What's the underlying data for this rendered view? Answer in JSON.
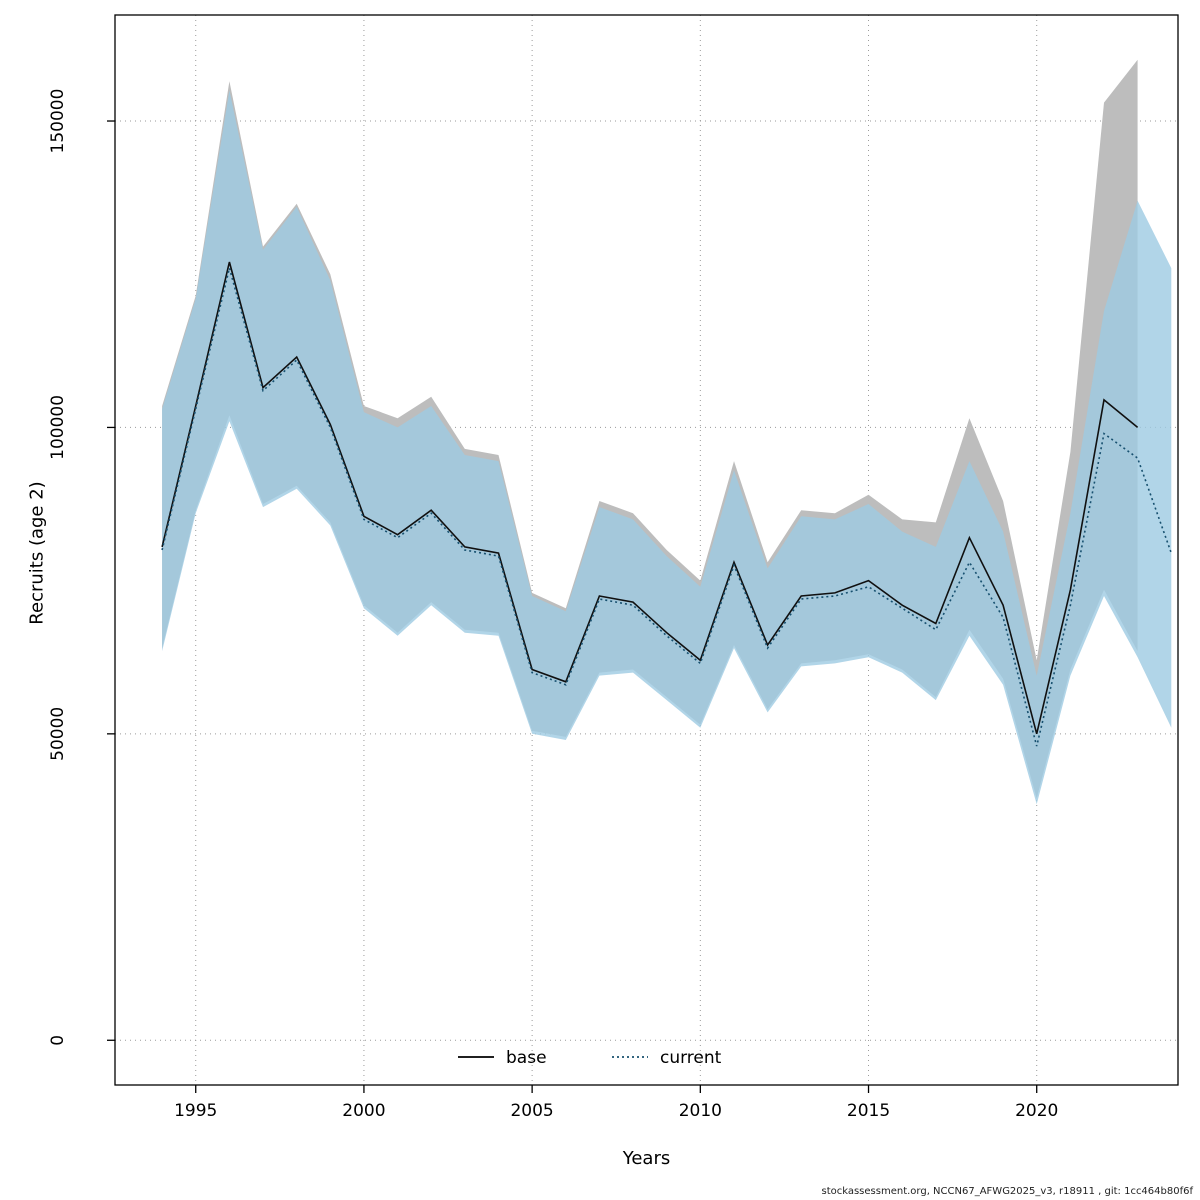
{
  "page": {
    "background": "#ffffff"
  },
  "footer": {
    "text": "stockassessment.org, NCCN67_AFWG2025_v3, r18911 , git: 1cc464b80f6f"
  },
  "chart_data": {
    "type": "line",
    "title": "",
    "xlabel": "Years",
    "ylabel": "Recruits (age 2)",
    "x_ticks": [
      1995,
      2000,
      2005,
      2010,
      2015,
      2020
    ],
    "y_ticks": [
      0,
      50000,
      100000,
      150000
    ],
    "xlim": [
      1992.6,
      2024.2
    ],
    "ylim": [
      -7300,
      167300
    ],
    "grid": true,
    "legend": {
      "position": "bottom-center",
      "entries": [
        {
          "label": "base",
          "line": "solid",
          "color": "#000000"
        },
        {
          "label": "current",
          "line": "dotted",
          "color": "#17506f"
        }
      ]
    },
    "series": [
      {
        "name": "base",
        "style": "solid",
        "color": "#101010",
        "band_color": "#bdbdbd",
        "years": [
          1994,
          1995,
          1996,
          1997,
          1998,
          1999,
          2000,
          2001,
          2002,
          2003,
          2004,
          2005,
          2006,
          2007,
          2008,
          2009,
          2010,
          2011,
          2012,
          2013,
          2014,
          2015,
          2016,
          2017,
          2018,
          2019,
          2020,
          2021,
          2022,
          2023
        ],
        "values": [
          80500,
          103500,
          127000,
          106500,
          111500,
          100500,
          85500,
          82500,
          86500,
          80500,
          79500,
          60500,
          58500,
          72500,
          71500,
          66500,
          62000,
          78000,
          64500,
          72500,
          73000,
          75000,
          71000,
          68000,
          82000,
          71000,
          50000,
          73500,
          104500,
          100000
        ],
        "upper": [
          103500,
          121500,
          156500,
          129500,
          136500,
          125000,
          103500,
          101500,
          105000,
          96500,
          95500,
          73000,
          70500,
          88000,
          86000,
          80000,
          75000,
          94500,
          78000,
          86500,
          86000,
          89000,
          85000,
          84500,
          101500,
          88000,
          62000,
          96000,
          153000,
          160000
        ],
        "lower": [
          64000,
          86500,
          102000,
          87500,
          90500,
          84500,
          71000,
          66500,
          71500,
          67000,
          66500,
          50500,
          49500,
          60000,
          60500,
          56000,
          51500,
          64500,
          54000,
          61500,
          62000,
          63000,
          60500,
          56000,
          67000,
          59000,
          39500,
          60500,
          73500,
          63500
        ]
      },
      {
        "name": "current",
        "style": "dotted",
        "color": "#17506f",
        "band_color": "rgba(158,203,226,0.8)",
        "years": [
          1994,
          1995,
          1996,
          1997,
          1998,
          1999,
          2000,
          2001,
          2002,
          2003,
          2004,
          2005,
          2006,
          2007,
          2008,
          2009,
          2010,
          2011,
          2012,
          2013,
          2014,
          2015,
          2016,
          2017,
          2018,
          2019,
          2020,
          2021,
          2022,
          2023,
          2024
        ],
        "values": [
          80000,
          103000,
          126000,
          106000,
          111000,
          100000,
          85000,
          82000,
          86000,
          80000,
          79000,
          60000,
          58000,
          72000,
          71000,
          66000,
          61500,
          77500,
          64000,
          72000,
          72500,
          74000,
          70500,
          67000,
          78000,
          69000,
          48000,
          71000,
          99000,
          95000,
          79500
        ],
        "upper": [
          103000,
          121000,
          155000,
          129000,
          136000,
          124000,
          102500,
          100000,
          103500,
          95500,
          94500,
          72500,
          70000,
          87000,
          85000,
          79000,
          74000,
          93000,
          77000,
          85500,
          85000,
          87500,
          83000,
          80500,
          94500,
          83000,
          59500,
          86000,
          119000,
          137000,
          126000
        ],
        "lower": [
          63500,
          86000,
          101000,
          87000,
          90000,
          84000,
          70500,
          66000,
          71000,
          66500,
          66000,
          50000,
          49000,
          59500,
          60000,
          55500,
          51000,
          64000,
          53500,
          61000,
          61500,
          62500,
          60000,
          55500,
          66000,
          58000,
          38500,
          59500,
          72500,
          62500,
          51000
        ]
      }
    ]
  }
}
